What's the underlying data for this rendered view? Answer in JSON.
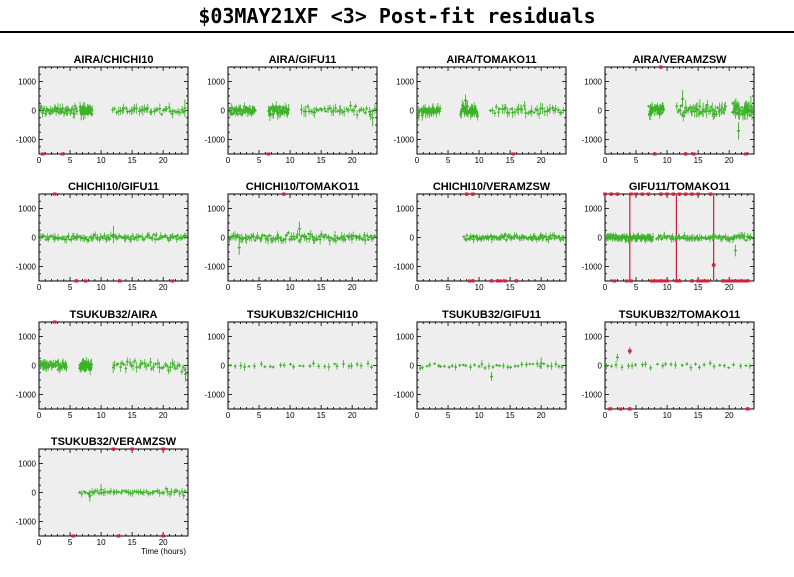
{
  "title": "$03MAY21XF <3> Post-fit residuals",
  "colors": {
    "points": "#3cb228",
    "outliers": "#d0203c",
    "panel_bg": "#eeeeee"
  },
  "chart_data": [
    {
      "type": "scatter",
      "title": "AIRA/CHICHI10",
      "xlim": [
        0,
        24
      ],
      "ylim": [
        -1500,
        1500
      ],
      "xticks": [
        0,
        5,
        10,
        15,
        20
      ],
      "yticks": [
        1000,
        0,
        -1000
      ],
      "grid": false,
      "segments": [
        [
          0.2,
          6.2,
          90,
          40
        ],
        [
          6.6,
          8.6,
          100,
          45
        ],
        [
          11.8,
          23.8,
          90,
          40
        ]
      ],
      "wide": [
        [
          23.5,
          80,
          300
        ],
        [
          6.8,
          -120,
          220
        ]
      ],
      "spikes": [],
      "flag_bottom": [
        0.6,
        3.8
      ],
      "flag_top": [],
      "mid_flags": []
    },
    {
      "type": "scatter",
      "title": "AIRA/GIFU11",
      "xlim": [
        0,
        24
      ],
      "ylim": [
        -1500,
        1500
      ],
      "xticks": [
        0,
        5,
        10,
        15,
        20
      ],
      "yticks": [
        1000,
        0,
        -1000
      ],
      "grid": false,
      "segments": [
        [
          0.2,
          4.5,
          90,
          45
        ],
        [
          6.5,
          9.8,
          110,
          45
        ],
        [
          11.8,
          23.8,
          100,
          40
        ]
      ],
      "wide": [
        [
          23.3,
          -250,
          300
        ]
      ],
      "spikes": [],
      "flag_bottom": [
        6.5
      ],
      "flag_top": [],
      "mid_flags": []
    },
    {
      "type": "scatter",
      "title": "AIRA/TOMAKO11",
      "xlim": [
        0,
        24
      ],
      "ylim": [
        -1500,
        1500
      ],
      "xticks": [
        0,
        5,
        10,
        15,
        20
      ],
      "yticks": [
        1000,
        0,
        -1000
      ],
      "grid": false,
      "segments": [
        [
          0.2,
          3.8,
          100,
          40
        ],
        [
          7,
          9.8,
          120,
          40
        ],
        [
          11.8,
          23.8,
          100,
          40
        ]
      ],
      "wide": [
        [
          7.8,
          350,
          200
        ]
      ],
      "spikes": [],
      "flag_bottom": [
        15.5
      ],
      "flag_top": [],
      "mid_flags": []
    },
    {
      "type": "scatter",
      "title": "AIRA/VERAMZSW",
      "xlim": [
        0,
        24
      ],
      "ylim": [
        -1500,
        1500
      ],
      "xticks": [
        0,
        5,
        10,
        15,
        20
      ],
      "yticks": [
        1000,
        0,
        -1000
      ],
      "grid": false,
      "segments": [
        [
          7,
          9.5,
          110,
          35
        ],
        [
          11.5,
          19.5,
          140,
          45
        ],
        [
          20.5,
          23.8,
          160,
          40
        ]
      ],
      "wide": [
        [
          23.5,
          150,
          350
        ],
        [
          21.5,
          -700,
          300
        ],
        [
          12.5,
          400,
          300
        ]
      ],
      "spikes": [],
      "flag_bottom": [
        8,
        13,
        14.3,
        22.7
      ],
      "flag_top": [
        9
      ],
      "mid_flags": []
    },
    {
      "type": "scatter",
      "title": "CHICHI10/GIFU11",
      "xlim": [
        0,
        24
      ],
      "ylim": [
        -1500,
        1500
      ],
      "xticks": [
        0,
        5,
        10,
        15,
        20
      ],
      "yticks": [
        1000,
        0,
        -1000
      ],
      "grid": false,
      "segments": [
        [
          0.2,
          23.8,
          60,
          110
        ]
      ],
      "wide": [
        [
          12,
          100,
          300
        ]
      ],
      "spikes": [],
      "flag_bottom": [
        6,
        7.5,
        13,
        21.5
      ],
      "flag_top": [
        2.5
      ],
      "mid_flags": []
    },
    {
      "type": "scatter",
      "title": "CHICHI10/TOMAKO11",
      "xlim": [
        0,
        24
      ],
      "ylim": [
        -1500,
        1500
      ],
      "xticks": [
        0,
        5,
        10,
        15,
        20
      ],
      "yticks": [
        1000,
        0,
        -1000
      ],
      "grid": false,
      "segments": [
        [
          0.2,
          23.8,
          80,
          110
        ]
      ],
      "wide": [
        [
          1.8,
          -350,
          250
        ],
        [
          11.5,
          300,
          250
        ]
      ],
      "spikes": [],
      "flag_bottom": [],
      "flag_top": [
        9
      ],
      "mid_flags": []
    },
    {
      "type": "scatter",
      "title": "CHICHI10/VERAMZSW",
      "xlim": [
        0,
        24
      ],
      "ylim": [
        -1500,
        1500
      ],
      "xticks": [
        0,
        5,
        10,
        15,
        20
      ],
      "yticks": [
        1000,
        0,
        -1000
      ],
      "grid": false,
      "segments": [
        [
          7.5,
          23.8,
          60,
          90
        ]
      ],
      "wide": [],
      "spikes": [],
      "flag_bottom": [
        8.5,
        9,
        12,
        13,
        13.5,
        14.2,
        16
      ],
      "flag_top": [
        8,
        9
      ],
      "mid_flags": []
    },
    {
      "type": "scatter",
      "title": "GIFU11/TOMAKO11",
      "xlim": [
        0,
        24
      ],
      "ylim": [
        -1500,
        1500
      ],
      "xticks": [
        0,
        5,
        10,
        15,
        20
      ],
      "yticks": [
        1000,
        0,
        -1000
      ],
      "grid": false,
      "segments": [
        [
          0.2,
          7.8,
          60,
          80
        ],
        [
          8.3,
          23.8,
          60,
          80
        ]
      ],
      "wide": [
        [
          21,
          -450,
          200
        ]
      ],
      "spikes": [
        4,
        11.5,
        17.5
      ],
      "flag_bottom": [
        1.5,
        3.5,
        4.2,
        7.5,
        8,
        8.5,
        9,
        9.5,
        10,
        11.5,
        12,
        14,
        15,
        15.5,
        16,
        16.5,
        19,
        19.5,
        20,
        20.5,
        21,
        21.5,
        22,
        22.5,
        23
      ],
      "flag_top": [
        0,
        1,
        2,
        4.2,
        5,
        6,
        7,
        9,
        10,
        11,
        12,
        13,
        14,
        15,
        17
      ],
      "mid_flags": [
        [
          17.5,
          -950
        ]
      ]
    },
    {
      "type": "scatter",
      "title": "TSUKUB32/AIRA",
      "xlim": [
        0,
        24
      ],
      "ylim": [
        -1500,
        1500
      ],
      "xticks": [
        0,
        5,
        10,
        15,
        20
      ],
      "yticks": [
        1000,
        0,
        -1000
      ],
      "grid": false,
      "segments": [
        [
          0.2,
          4.5,
          90,
          45
        ],
        [
          6.5,
          8.5,
          100,
          45
        ],
        [
          11.8,
          23.8,
          100,
          40
        ]
      ],
      "wide": [
        [
          23.6,
          -300,
          250
        ]
      ],
      "spikes": [],
      "flag_bottom": [],
      "flag_top": [
        2.5
      ],
      "mid_flags": []
    },
    {
      "type": "scatter",
      "title": "TSUKUB32/CHICHI10",
      "xlim": [
        0,
        24
      ],
      "ylim": [
        -1500,
        1500
      ],
      "xticks": [
        0,
        5,
        10,
        15,
        20
      ],
      "yticks": [
        1000,
        0,
        -1000
      ],
      "grid": false,
      "segments": [
        [
          0.2,
          23.8,
          60,
          30
        ]
      ],
      "wide": [],
      "spikes": [],
      "flag_bottom": [],
      "flag_top": [],
      "mid_flags": []
    },
    {
      "type": "scatter",
      "title": "TSUKUB32/GIFU11",
      "xlim": [
        0,
        24
      ],
      "ylim": [
        -1500,
        1500
      ],
      "xticks": [
        0,
        5,
        10,
        15,
        20
      ],
      "yticks": [
        1000,
        0,
        -1000
      ],
      "grid": false,
      "segments": [
        [
          0.2,
          23.8,
          60,
          40
        ]
      ],
      "wide": [
        [
          12,
          -380,
          150
        ],
        [
          20,
          80,
          200
        ]
      ],
      "spikes": [],
      "flag_bottom": [],
      "flag_top": [],
      "mid_flags": []
    },
    {
      "type": "scatter",
      "title": "TSUKUB32/TOMAKO11",
      "xlim": [
        0,
        24
      ],
      "ylim": [
        -1500,
        1500
      ],
      "xticks": [
        0,
        5,
        10,
        15,
        20
      ],
      "yticks": [
        1000,
        0,
        -1000
      ],
      "grid": false,
      "segments": [
        [
          0.2,
          23.8,
          60,
          30
        ]
      ],
      "wide": [
        [
          2,
          280,
          120
        ]
      ],
      "spikes": [],
      "flag_bottom": [
        0.8,
        2.5,
        4,
        23
      ],
      "flag_top": [],
      "mid_flags": [
        [
          4,
          500
        ]
      ]
    },
    {
      "type": "scatter",
      "title": "TSUKUB32/VERAMZSW",
      "xlim": [
        0,
        24
      ],
      "ylim": [
        -1500,
        1500
      ],
      "xticks": [
        0,
        5,
        10,
        15,
        20
      ],
      "yticks": [
        1000,
        0,
        -1000
      ],
      "grid": false,
      "segments": [
        [
          6.5,
          23.8,
          60,
          55
        ]
      ],
      "wide": [
        [
          8.2,
          -120,
          200
        ],
        [
          10,
          100,
          200
        ]
      ],
      "spikes": [],
      "flag_bottom": [
        5.5,
        12.8,
        20
      ],
      "flag_top": [
        12,
        15,
        20
      ],
      "mid_flags": [],
      "xlabel": "Time (hours)"
    }
  ]
}
